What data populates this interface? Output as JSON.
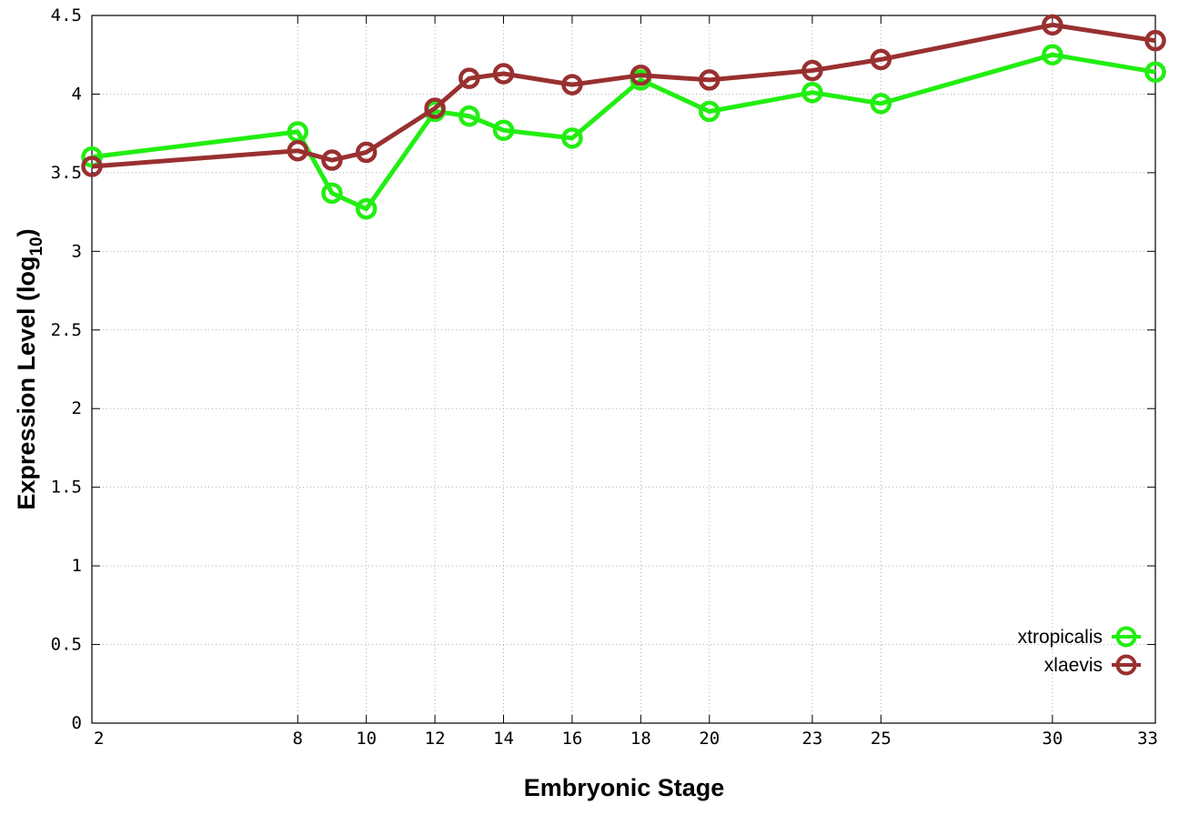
{
  "chart_data": {
    "type": "line",
    "title": "",
    "xlabel": "Embryonic Stage",
    "ylabel_main": "Expression Level (log",
    "ylabel_sub": "10",
    "ylabel_close": ")",
    "xlim": [
      2,
      33
    ],
    "ylim": [
      0,
      4.5
    ],
    "xticks": [
      2,
      8,
      10,
      12,
      14,
      16,
      18,
      20,
      23,
      25,
      30,
      33
    ],
    "xtick_labels": [
      "2",
      "8",
      "10",
      "12",
      "14",
      "16",
      "18",
      "20",
      "23",
      "25",
      "30",
      "33"
    ],
    "yticks": [
      0,
      0.5,
      1,
      1.5,
      2,
      2.5,
      3,
      3.5,
      4,
      4.5
    ],
    "ytick_labels": [
      "0",
      "0.5",
      "1",
      "1.5",
      "2",
      "2.5",
      "3",
      "3.5",
      "4",
      "4.5"
    ],
    "x": [
      2,
      8,
      9,
      10,
      12,
      13,
      14,
      16,
      18,
      20,
      23,
      25,
      30,
      33
    ],
    "grid": true,
    "legend_position": "bottom-right",
    "series": [
      {
        "name": "xtropicalis",
        "color": "#22ee11",
        "values": [
          3.6,
          3.76,
          3.37,
          3.27,
          3.89,
          3.86,
          3.77,
          3.72,
          4.09,
          3.89,
          4.01,
          3.94,
          4.25,
          4.14
        ]
      },
      {
        "name": "xlaevis",
        "color": "#993030",
        "values": [
          3.54,
          3.64,
          3.58,
          3.63,
          3.91,
          4.1,
          4.13,
          4.06,
          4.12,
          4.09,
          4.15,
          4.22,
          4.44,
          4.34
        ]
      }
    ]
  }
}
